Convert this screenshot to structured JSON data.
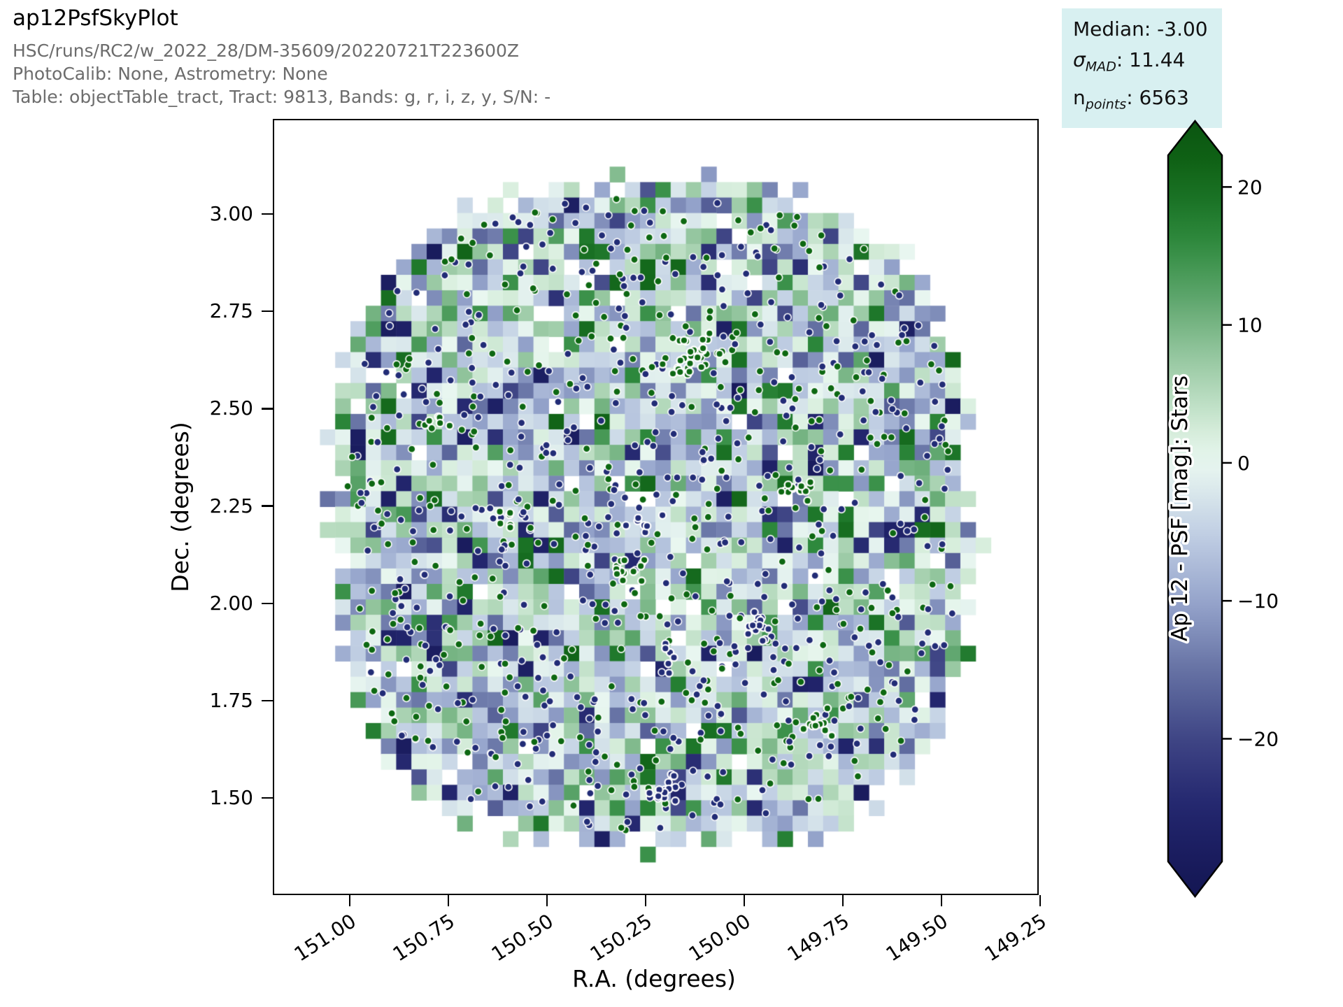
{
  "header": {
    "title": "ap12PsfSkyPlot",
    "lines": [
      "HSC/runs/RC2/w_2022_28/DM-35609/20220721T223600Z",
      "PhotoCalib: None, Astrometry: None",
      "Table: objectTable_tract, Tract: 9813, Bands: g, r, i, z, y, S/N: -"
    ]
  },
  "stats_box": {
    "background": "#d8f0f1",
    "median_label": "Median: -3.00",
    "sigma_symbol": "σ",
    "sigma_sub": "MAD",
    "sigma_value": ": 11.44",
    "n_symbol": "n",
    "n_sub": "points",
    "n_value": ": 6563"
  },
  "axes": {
    "xlabel": "R.A. (degrees)",
    "ylabel": "Dec. (degrees)",
    "x_tick_labels": [
      "151.00",
      "150.75",
      "150.50",
      "150.25",
      "150.00",
      "149.75",
      "149.50",
      "149.25"
    ],
    "y_tick_labels": [
      "3.00",
      "2.75",
      "2.50",
      "2.25",
      "2.00",
      "1.75",
      "1.50"
    ]
  },
  "colorbar": {
    "label": "Ap 12 - PSF [mag]: Stars",
    "tick_labels": [
      "20",
      "10",
      "0",
      "−10",
      "−20"
    ],
    "tick_values": [
      20,
      10,
      0,
      -10,
      -20
    ]
  },
  "chart_data": {
    "type": "heatmap",
    "title": "ap12PsfSkyPlot",
    "xlabel": "R.A. (degrees)",
    "ylabel": "Dec. (degrees)",
    "x_ticks": [
      151.0,
      150.75,
      150.5,
      150.25,
      150.0,
      149.75,
      149.5,
      149.25
    ],
    "y_ticks": [
      3.0,
      2.75,
      2.5,
      2.25,
      2.0,
      1.75,
      1.5
    ],
    "x_axis_direction": "decreasing (R.A. increases to the left)",
    "x_range_deg": [
      151.19,
      149.26
    ],
    "y_range_deg": [
      1.25,
      3.25
    ],
    "bin_size_deg": 0.039,
    "footprint": {
      "shape": "ragged rounded-square tract footprint of filled bins",
      "center_ra_deg": 150.23,
      "center_dec_deg": 2.23,
      "radius_deg": 0.83
    },
    "stats": {
      "median": -3.0,
      "sigma_mad": 11.44,
      "n_points": 6563
    },
    "colorbar": {
      "label": "Ap 12 - PSF [mag]: Stars",
      "ticks": [
        20,
        10,
        0,
        -10,
        -20
      ],
      "vmin": -28.9,
      "vmax": 22.3,
      "extend": "both",
      "colormap_stops": [
        {
          "value": -31,
          "color": "#141654"
        },
        {
          "value": -25,
          "color": "#23266e"
        },
        {
          "value": -20,
          "color": "#3f4585"
        },
        {
          "value": -15,
          "color": "#6672a4"
        },
        {
          "value": -10,
          "color": "#96a5cc"
        },
        {
          "value": -5,
          "color": "#c2d0e4"
        },
        {
          "value": -1,
          "color": "#e2f0ee"
        },
        {
          "value": 0,
          "color": "#e9f7f0"
        },
        {
          "value": 2,
          "color": "#d8eedd"
        },
        {
          "value": 5,
          "color": "#b5dabd"
        },
        {
          "value": 8,
          "color": "#91c49c"
        },
        {
          "value": 12,
          "color": "#5da56c"
        },
        {
          "value": 16,
          "color": "#2f8a3e"
        },
        {
          "value": 19,
          "color": "#1b7326"
        },
        {
          "value": 22,
          "color": "#0f6115"
        },
        {
          "value": 25,
          "color": "#0a5410"
        }
      ]
    },
    "layers": [
      {
        "name": "binned sky values",
        "type": "heatmap",
        "grid": "≈50×50 square bins, random-looking mix of pale green/blue bins with saturated navy and green outlier bins, scattered white holes"
      },
      {
        "name": "outlier star points",
        "type": "scatter",
        "approx_marker_count": 1000,
        "marker_low_color": "#222c76",
        "marker_high_color": "#0d6812",
        "marker_edge_color": "#ffffff",
        "note": "small circular markers with white edges, several tight clusters of ringed points"
      }
    ]
  }
}
